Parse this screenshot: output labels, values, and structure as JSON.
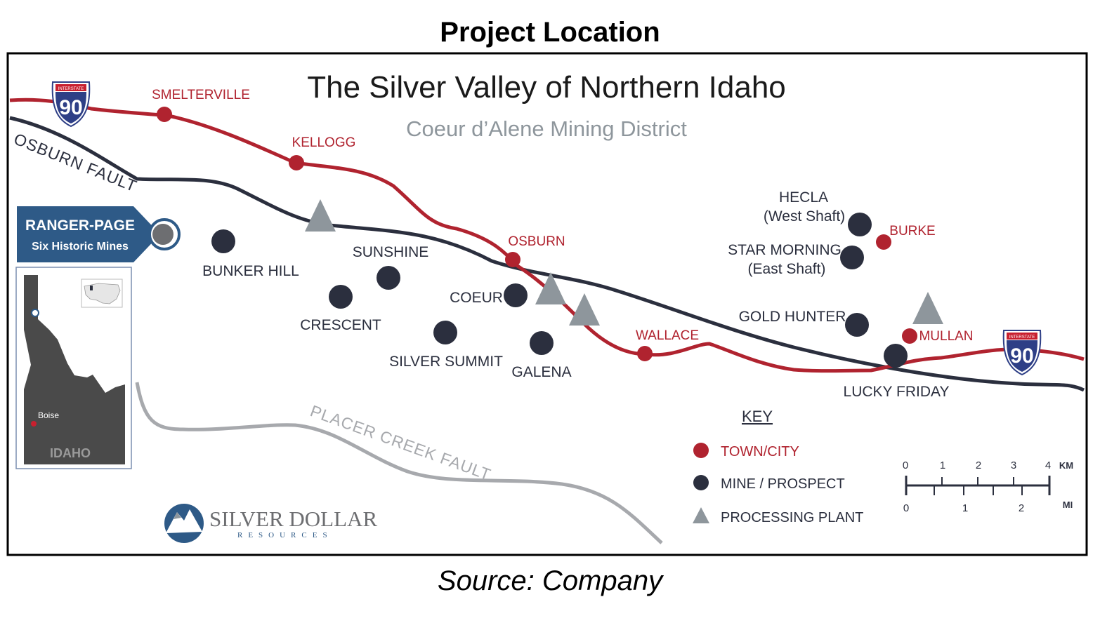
{
  "figure": {
    "caption": "Project Location",
    "source": "Source: Company"
  },
  "map": {
    "title": "The Silver Valley of Northern Idaho",
    "subtitle": "Coeur d’Alene Mining District",
    "highway_shield": {
      "top": "INTERSTATE",
      "number": "90"
    },
    "faults": {
      "osburn": "OSBURN FAULT",
      "placer_creek": "PLACER CREEK FAULT"
    },
    "towns": {
      "smelterville": "SMELTERVILLE",
      "kellogg": "KELLOGG",
      "osburn": "OSBURN",
      "wallace": "WALLACE",
      "burke": "BURKE",
      "mullan": "MULLAN"
    },
    "mines": {
      "bunker_hill": "BUNKER HILL",
      "crescent": "CRESCENT",
      "sunshine": "SUNSHINE",
      "silver_summit": "SILVER SUMMIT",
      "coeur": "COEUR",
      "galena": "GALENA",
      "hecla_line1": "HECLA",
      "hecla_line2": "(West Shaft)",
      "star_line1": "STAR MORNING",
      "star_line2": "(East Shaft)",
      "gold_hunter": "GOLD HUNTER",
      "lucky_friday": "LUCKY FRIDAY"
    },
    "project": {
      "name": "RANGER-PAGE",
      "subtitle": "Six Historic Mines"
    },
    "inset": {
      "state": "IDAHO",
      "city": "Boise"
    },
    "key": {
      "title": "KEY",
      "town": "TOWN/CITY",
      "mine": "MINE / PROSPECT",
      "plant": "PROCESSING PLANT"
    },
    "scale": {
      "km_ticks": [
        "0",
        "1",
        "2",
        "3",
        "4"
      ],
      "km_unit": "KM",
      "mi_ticks": [
        "0",
        "1",
        "2"
      ],
      "mi_unit": "MI"
    },
    "logo": {
      "name": "SILVER DOLLAR",
      "sub": "RESOURCES"
    },
    "colors": {
      "road": "#b0232f",
      "fault": "#2b2f3e",
      "fault2": "#a7a9ad",
      "mine": "#2b2f3e",
      "town": "#b0232f",
      "plant": "#8e969c",
      "project": "#2e5a87",
      "inset_state": "#4a4a4a"
    }
  }
}
